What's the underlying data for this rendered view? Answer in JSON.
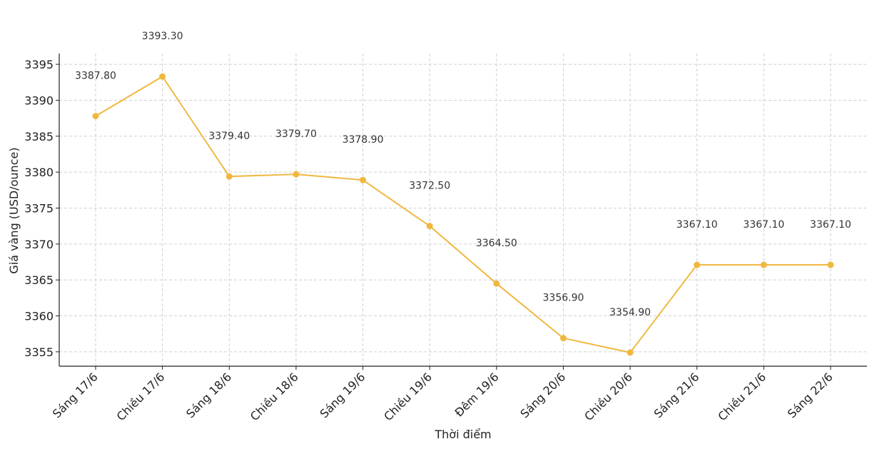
{
  "chart_data": {
    "type": "line",
    "title": "",
    "xlabel": "Thời điểm",
    "ylabel": "Giá vàng (USD/ounce)",
    "categories": [
      "Sáng 17/6",
      "Chiều 17/6",
      "Sáng 18/6",
      "Chiều 18/6",
      "Sáng 19/6",
      "Chiều 19/6",
      "Đêm 19/6",
      "Sáng 20/6",
      "Chiều 20/6",
      "Sáng 21/6",
      "Chiều 21/6",
      "Sáng 22/6"
    ],
    "values": [
      3387.8,
      3393.3,
      3379.4,
      3379.7,
      3378.9,
      3372.5,
      3364.5,
      3356.9,
      3354.9,
      3367.1,
      3367.1,
      3367.1
    ],
    "data_labels": [
      "3387.80",
      "3393.30",
      "3379.40",
      "3379.70",
      "3378.90",
      "3372.50",
      "3364.50",
      "3356.90",
      "3354.90",
      "3367.10",
      "3367.10",
      "3367.10"
    ],
    "yticks": [
      3355,
      3360,
      3365,
      3370,
      3375,
      3380,
      3385,
      3390,
      3395
    ],
    "ylim": [
      3353,
      3396.5
    ],
    "grid": true,
    "color": "#f0b840"
  }
}
